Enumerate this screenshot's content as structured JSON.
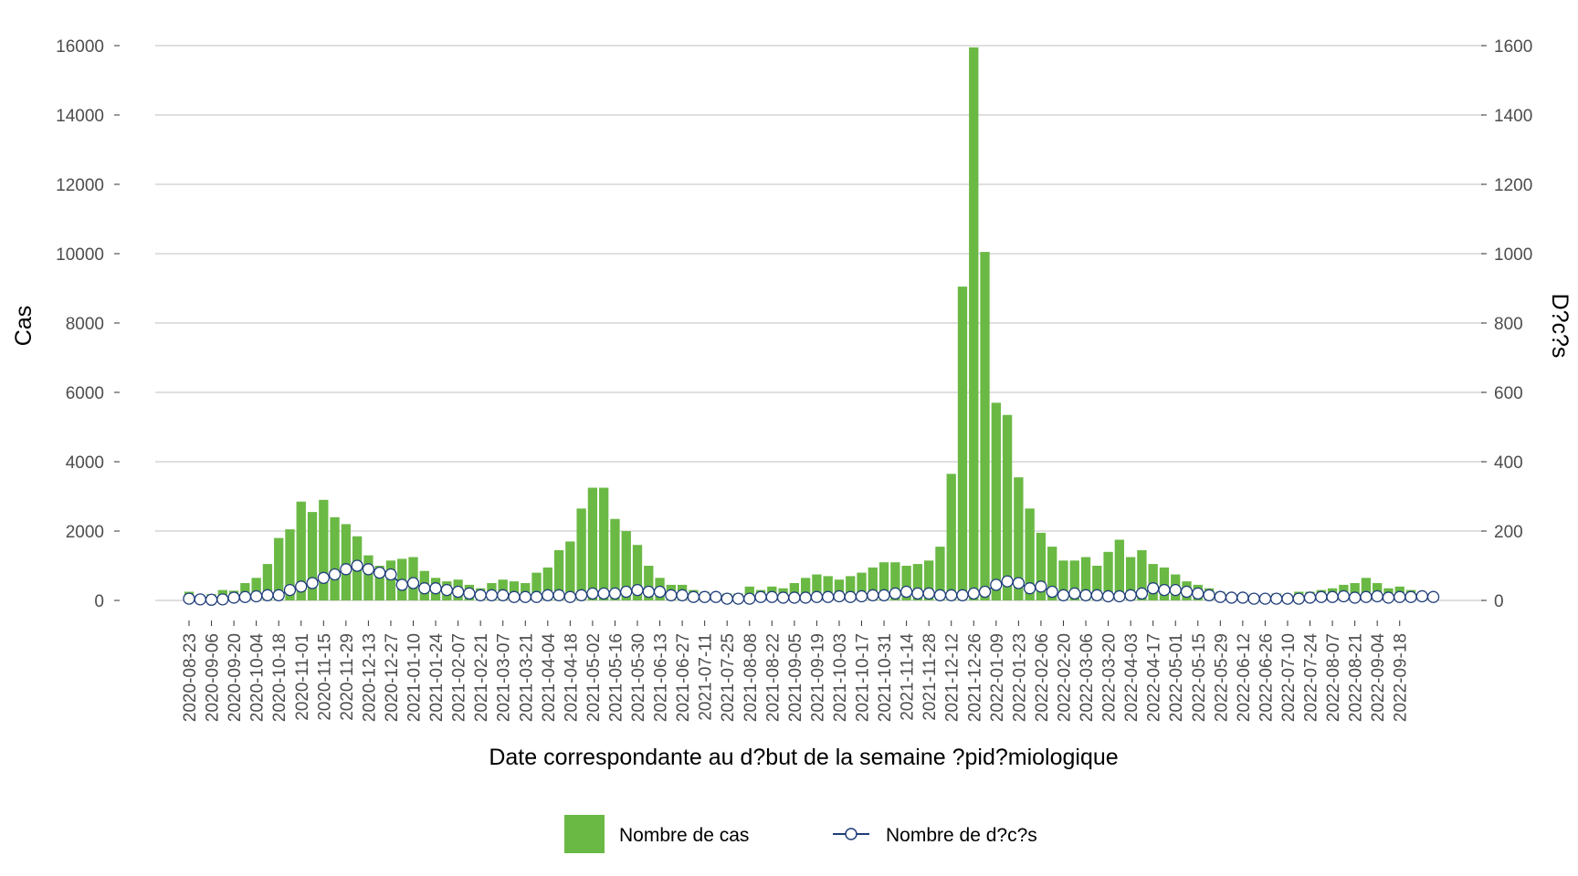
{
  "chart_data": {
    "type": "bar",
    "xlabel": "Date correspondante au d?but de la semaine ?pid?miologique",
    "ylabel": "Cas",
    "y2label": "D?c?s",
    "ylim": [
      0,
      16000
    ],
    "y2lim": [
      0,
      1600
    ],
    "yticks": [
      0,
      2000,
      4000,
      6000,
      8000,
      10000,
      12000,
      14000,
      16000
    ],
    "y2ticks": [
      0,
      200,
      400,
      600,
      800,
      1000,
      1200,
      1400,
      1600
    ],
    "grid": true,
    "legend_position": "bottom",
    "colors": {
      "bars": "#6ab944",
      "line": "#1f3d7a",
      "marker_fill": "#ffffff",
      "grid": "#cccccc"
    },
    "tick_labels": [
      "2020-08-23",
      "2020-09-06",
      "2020-09-20",
      "2020-10-04",
      "2020-10-18",
      "2020-11-01",
      "2020-11-15",
      "2020-11-29",
      "2020-12-13",
      "2020-12-27",
      "2021-01-10",
      "2021-01-24",
      "2021-02-07",
      "2021-02-21",
      "2021-03-07",
      "2021-03-21",
      "2021-04-04",
      "2021-04-18",
      "2021-05-02",
      "2021-05-16",
      "2021-05-30",
      "2021-06-13",
      "2021-06-27",
      "2021-07-11",
      "2021-07-25",
      "2021-08-08",
      "2021-08-22",
      "2021-09-05",
      "2021-09-19",
      "2021-10-03",
      "2021-10-17",
      "2021-10-31",
      "2021-11-14",
      "2021-11-28",
      "2021-12-12",
      "2021-12-26",
      "2022-01-09",
      "2022-01-23",
      "2022-02-06",
      "2022-02-20",
      "2022-03-06",
      "2022-03-20",
      "2022-04-03",
      "2022-04-17",
      "2022-05-01",
      "2022-05-15",
      "2022-05-29",
      "2022-06-12",
      "2022-06-26",
      "2022-07-10",
      "2022-07-24",
      "2022-08-07",
      "2022-08-21",
      "2022-09-04",
      "2022-09-18"
    ],
    "series": [
      {
        "name": "Nombre de cas",
        "type": "bar",
        "axis": "left",
        "values": [
          250,
          150,
          180,
          300,
          280,
          500,
          650,
          1050,
          1800,
          2050,
          2850,
          2550,
          2900,
          2400,
          2200,
          1850,
          1300,
          1000,
          1150,
          1200,
          1250,
          850,
          650,
          550,
          600,
          450,
          350,
          500,
          600,
          550,
          500,
          800,
          950,
          1450,
          1700,
          2650,
          3250,
          3250,
          2350,
          2000,
          1600,
          1000,
          650,
          450,
          450,
          300,
          250,
          200,
          200,
          200,
          400,
          300,
          400,
          350,
          500,
          650,
          750,
          700,
          600,
          700,
          800,
          950,
          1100,
          1100,
          1000,
          1050,
          1150,
          1550,
          3650,
          9050,
          15950,
          10050,
          5700,
          5350,
          3550,
          2650,
          1950,
          1550,
          1150,
          1150,
          1250,
          1000,
          1400,
          1750,
          1250,
          1450,
          1050,
          950,
          750,
          550,
          450,
          350,
          250,
          200,
          150,
          100,
          100,
          200,
          150,
          250,
          250,
          300,
          350,
          450,
          500,
          650,
          500,
          350,
          400,
          300
        ]
      },
      {
        "name": "Nombre de d?c?s",
        "type": "line",
        "axis": "right",
        "values": [
          5,
          3,
          2,
          3,
          8,
          10,
          12,
          15,
          15,
          30,
          40,
          50,
          65,
          75,
          90,
          100,
          90,
          80,
          75,
          45,
          50,
          35,
          35,
          30,
          25,
          20,
          15,
          15,
          15,
          10,
          10,
          10,
          15,
          15,
          10,
          15,
          20,
          20,
          20,
          25,
          30,
          25,
          25,
          15,
          15,
          10,
          10,
          10,
          5,
          5,
          5,
          10,
          10,
          8,
          8,
          8,
          10,
          10,
          12,
          10,
          12,
          15,
          15,
          20,
          25,
          20,
          20,
          15,
          15,
          15,
          20,
          25,
          45,
          55,
          50,
          35,
          40,
          25,
          15,
          20,
          15,
          15,
          12,
          12,
          15,
          20,
          35,
          30,
          30,
          25,
          20,
          15,
          10,
          8,
          8,
          5,
          5,
          5,
          5,
          5,
          8,
          10,
          10,
          12,
          8,
          10,
          12,
          8,
          10,
          10,
          12,
          10
        ]
      }
    ]
  },
  "legend": {
    "cases_label": "Nombre de cas",
    "deaths_label": "Nombre de d?c?s"
  }
}
